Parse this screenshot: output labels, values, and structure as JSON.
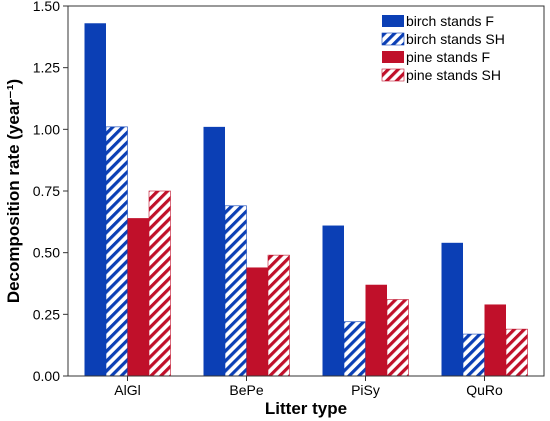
{
  "chart_data": {
    "type": "bar",
    "title": "",
    "xlabel": "Litter type",
    "ylabel": "Decomposition rate (year⁻¹)",
    "categories": [
      "AlGl",
      "BePe",
      "PiSy",
      "QuRo"
    ],
    "ylim": [
      0,
      1.5
    ],
    "yticks": [
      "0.00",
      "0.25",
      "0.50",
      "0.75",
      "1.00",
      "1.25",
      "1.50"
    ],
    "grid": false,
    "legend_position": "top-right",
    "series": [
      {
        "name": "birch stands F",
        "color": "#0b3fb5",
        "pattern": "solid",
        "values": [
          1.43,
          1.01,
          0.61,
          0.54
        ]
      },
      {
        "name": "birch stands SH",
        "color": "#0b3fb5",
        "pattern": "hatched",
        "values": [
          1.01,
          0.69,
          0.22,
          0.17
        ]
      },
      {
        "name": "pine stands F",
        "color": "#c0102a",
        "pattern": "solid",
        "values": [
          0.64,
          0.44,
          0.37,
          0.29
        ]
      },
      {
        "name": "pine stands SH",
        "color": "#c0102a",
        "pattern": "hatched",
        "values": [
          0.75,
          0.49,
          0.31,
          0.19
        ]
      }
    ]
  }
}
